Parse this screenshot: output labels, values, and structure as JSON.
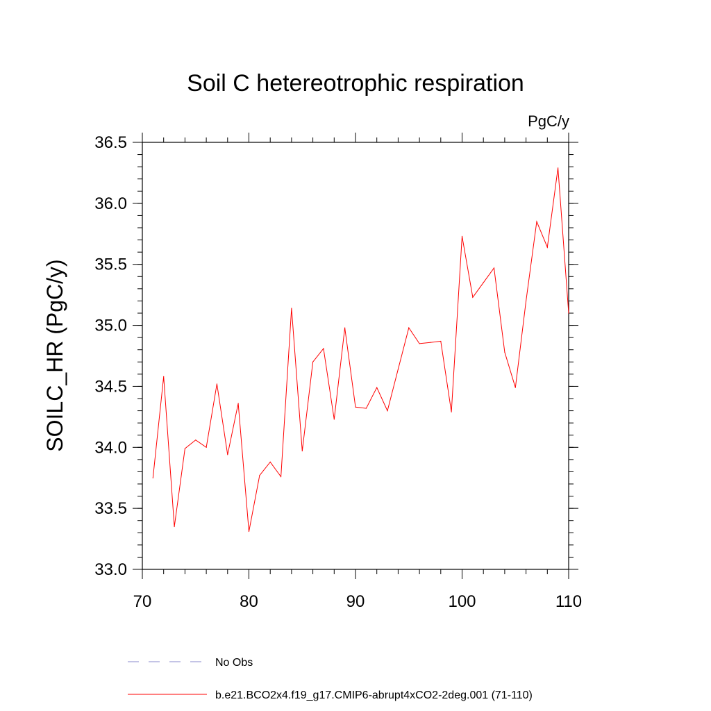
{
  "chart_data": {
    "type": "line",
    "title": "Soil C hetereotrophic respiration",
    "units_label": "PgC/y",
    "ylabel": "SOILC_HR  (PgC/y)",
    "xlabel": "",
    "xlim": [
      70,
      110
    ],
    "ylim": [
      33.0,
      36.5
    ],
    "x_ticks": [
      70,
      80,
      90,
      100,
      110
    ],
    "x_tick_labels": [
      "70",
      "80",
      "90",
      "100",
      "110"
    ],
    "y_ticks": [
      33.0,
      33.5,
      34.0,
      34.5,
      35.0,
      35.5,
      36.0,
      36.5
    ],
    "y_tick_labels": [
      "33.0",
      "33.5",
      "34.0",
      "34.5",
      "35.0",
      "35.5",
      "36.0",
      "36.5"
    ],
    "series": [
      {
        "name": "b.e21.BCO2x4.f19_g17.CMIP6-abrupt4xCO2-2deg.001 (71-110)",
        "color": "#ff0000",
        "x": [
          71,
          72,
          73,
          74,
          75,
          76,
          77,
          78,
          79,
          80,
          81,
          82,
          83,
          84,
          85,
          86,
          87,
          88,
          89,
          90,
          91,
          92,
          93,
          94,
          95,
          96,
          97,
          98,
          99,
          100,
          101,
          102,
          103,
          104,
          105,
          106,
          107,
          108,
          109,
          110
        ],
        "values": [
          33.75,
          34.58,
          33.35,
          33.99,
          34.06,
          34.0,
          34.52,
          33.94,
          34.36,
          33.31,
          33.77,
          33.88,
          33.76,
          35.14,
          33.97,
          34.7,
          34.81,
          34.23,
          34.98,
          34.33,
          34.32,
          34.49,
          34.3,
          34.64,
          34.98,
          34.85,
          34.86,
          34.87,
          34.29,
          35.73,
          35.23,
          35.35,
          35.47,
          34.78,
          34.49,
          35.2,
          35.85,
          35.64,
          36.29,
          35.1
        ]
      }
    ],
    "legend": [
      {
        "label": "No Obs",
        "style": "dashed",
        "color": "#8a8acc"
      },
      {
        "label": "b.e21.BCO2x4.f19_g17.CMIP6-abrupt4xCO2-2deg.001 (71-110)",
        "style": "solid",
        "color": "#ff0000"
      }
    ],
    "legend_position": "bottom"
  }
}
